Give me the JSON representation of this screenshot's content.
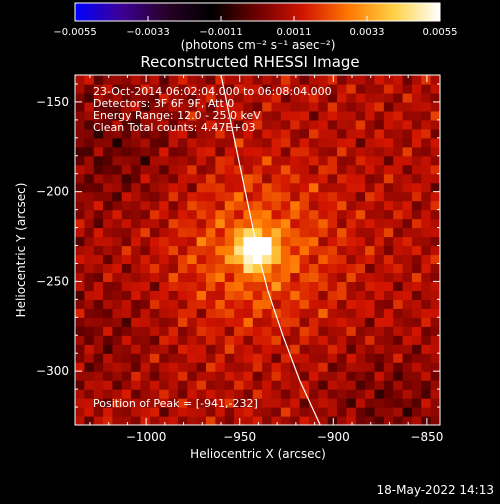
{
  "chart_data": {
    "type": "heatmap",
    "title": "Reconstructed RHESSI Image",
    "xlabel": "Heliocentric X (arcsec)",
    "ylabel": "Heliocentric Y (arcsec)",
    "xlim": [
      -1038,
      -843
    ],
    "ylim": [
      -330,
      -135
    ],
    "x_ticks": [
      -1000,
      -950,
      -900,
      -850
    ],
    "x_tick_labels": [
      "−1000",
      "−950",
      "−900",
      "−850"
    ],
    "y_ticks": [
      -150,
      -200,
      -250,
      -300
    ],
    "y_tick_labels": [
      "−150",
      "−200",
      "−250",
      "−300"
    ],
    "colorbar": {
      "range": [
        -0.0055,
        0.0055
      ],
      "ticks": [
        -0.0055,
        -0.0033,
        -0.0011,
        0.0011,
        0.0033,
        0.0055
      ],
      "tick_labels": [
        "−0.0055",
        "−0.0033",
        "−0.0011",
        "0.0011",
        "0.0033",
        "0.0055"
      ],
      "label": "(photons cm⁻² s⁻¹ asec⁻²)",
      "colormap": [
        "#0000ff",
        "#3c0096",
        "#280028",
        "#000000",
        "#6e0000",
        "#d21400",
        "#ff7800",
        "#ffd246",
        "#ffffff"
      ]
    },
    "peak": [
      -941,
      -232
    ],
    "peak_value": 0.0055,
    "limb_curve": [
      [
        -960,
        -135
      ],
      [
        -955,
        -160
      ],
      [
        -950,
        -185
      ],
      [
        -945,
        -210
      ],
      [
        -940,
        -235
      ],
      [
        -935,
        -255
      ],
      [
        -927,
        -280
      ],
      [
        -918,
        -305
      ],
      [
        -907,
        -330
      ]
    ],
    "limb_color": "#ffffff",
    "annotations": {
      "time": "23-Oct-2014 06:02:04.000 to 06:08:04.000",
      "detectors": "Detectors: 3F 6F 9F, Att 0",
      "energy": "Energy Range: 12.0 - 25.0 keV",
      "clean": "Clean    Total counts: 4.47E+03",
      "peak_label": "Position of Peak = [-941,-232]"
    },
    "footer_date": "18-May-2022 14:13"
  }
}
